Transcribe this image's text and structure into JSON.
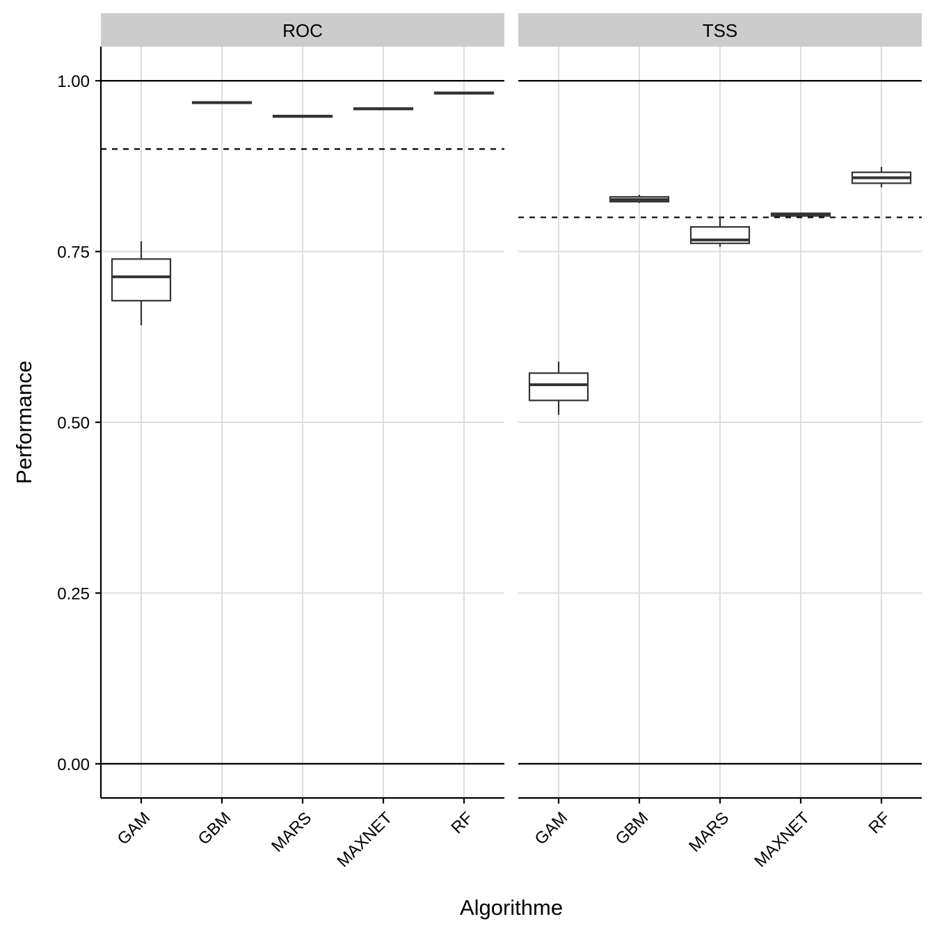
{
  "chart_data": {
    "type": "boxplot",
    "xlabel": "Algorithme",
    "ylabel": "Performance",
    "categories": [
      "GAM",
      "GBM",
      "MARS",
      "MAXNET",
      "RF"
    ],
    "ylim": [
      -0.05,
      1.05
    ],
    "yticks": [
      0.0,
      0.25,
      0.5,
      0.75,
      1.0
    ],
    "ytick_labels": [
      "0.00",
      "0.25",
      "0.50",
      "0.75",
      "1.00"
    ],
    "grid": true,
    "reference_lines_solid": [
      0.0,
      1.0
    ],
    "colors": {
      "box": "#333333",
      "grid": "#dddddd",
      "strip": "#cccccc",
      "axis": "#000000"
    },
    "panels": [
      {
        "name": "ROC",
        "threshold": 0.9,
        "boxes": [
          {
            "category": "GAM",
            "min": 0.642,
            "q1": 0.678,
            "median": 0.713,
            "q3": 0.739,
            "max": 0.765
          },
          {
            "category": "GBM",
            "min": 0.966,
            "q1": 0.967,
            "median": 0.968,
            "q3": 0.969,
            "max": 0.97
          },
          {
            "category": "MARS",
            "min": 0.946,
            "q1": 0.947,
            "median": 0.948,
            "q3": 0.949,
            "max": 0.95
          },
          {
            "category": "MAXNET",
            "min": 0.957,
            "q1": 0.958,
            "median": 0.959,
            "q3": 0.96,
            "max": 0.961
          },
          {
            "category": "RF",
            "min": 0.98,
            "q1": 0.981,
            "median": 0.982,
            "q3": 0.983,
            "max": 0.984
          }
        ]
      },
      {
        "name": "TSS",
        "threshold": 0.8,
        "boxes": [
          {
            "category": "GAM",
            "min": 0.511,
            "q1": 0.532,
            "median": 0.555,
            "q3": 0.572,
            "max": 0.589
          },
          {
            "category": "GBM",
            "min": 0.821,
            "q1": 0.823,
            "median": 0.826,
            "q3": 0.83,
            "max": 0.833
          },
          {
            "category": "MARS",
            "min": 0.757,
            "q1": 0.762,
            "median": 0.767,
            "q3": 0.786,
            "max": 0.8
          },
          {
            "category": "MAXNET",
            "min": 0.801,
            "q1": 0.802,
            "median": 0.804,
            "q3": 0.806,
            "max": 0.807
          },
          {
            "category": "RF",
            "min": 0.844,
            "q1": 0.85,
            "median": 0.858,
            "q3": 0.866,
            "max": 0.874
          }
        ]
      }
    ]
  }
}
